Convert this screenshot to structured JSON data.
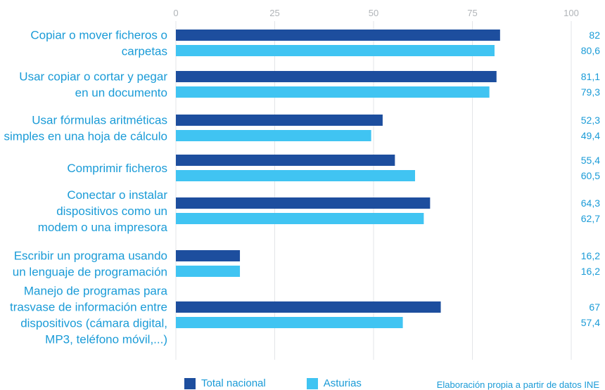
{
  "chart_data": {
    "type": "bar",
    "orientation": "horizontal",
    "xlim": [
      0,
      100
    ],
    "ticks": [
      0,
      25,
      50,
      75,
      100
    ],
    "grid": true,
    "categories": [
      [
        "Copiar o mover ficheros o",
        "carpetas"
      ],
      [
        "Usar copiar o cortar y pegar",
        "en un documento"
      ],
      [
        "Usar fórmulas aritméticas",
        "simples en una hoja de cálculo"
      ],
      [
        "Comprimir ficheros"
      ],
      [
        "Conectar o instalar",
        "dispositivos como un",
        "modem o una impresora"
      ],
      [
        "Escribir un programa usando",
        "un lenguaje de programación"
      ],
      [
        "Manejo de programas para",
        "trasvase de información entre",
        "dispositivos (cámara digital,",
        "MP3, teléfono móvil,...)"
      ]
    ],
    "series": [
      {
        "name": "Total nacional",
        "color": "#1d4e9e",
        "values": [
          82,
          81.1,
          52.3,
          55.4,
          64.3,
          16.2,
          67
        ],
        "labels": [
          "82",
          "81,1",
          "52,3",
          "55,4",
          "64,3",
          "16,2",
          "67"
        ]
      },
      {
        "name": "Asturias",
        "color": "#40c4f2",
        "values": [
          80.6,
          79.3,
          49.4,
          60.5,
          62.7,
          16.2,
          57.4
        ],
        "labels": [
          "80,6",
          "79,3",
          "49,4",
          "60,5",
          "62,7",
          "16,2",
          "57,4"
        ]
      }
    ],
    "legend_position": "bottom",
    "source": "Elaboración propia a partir de datos INE"
  }
}
